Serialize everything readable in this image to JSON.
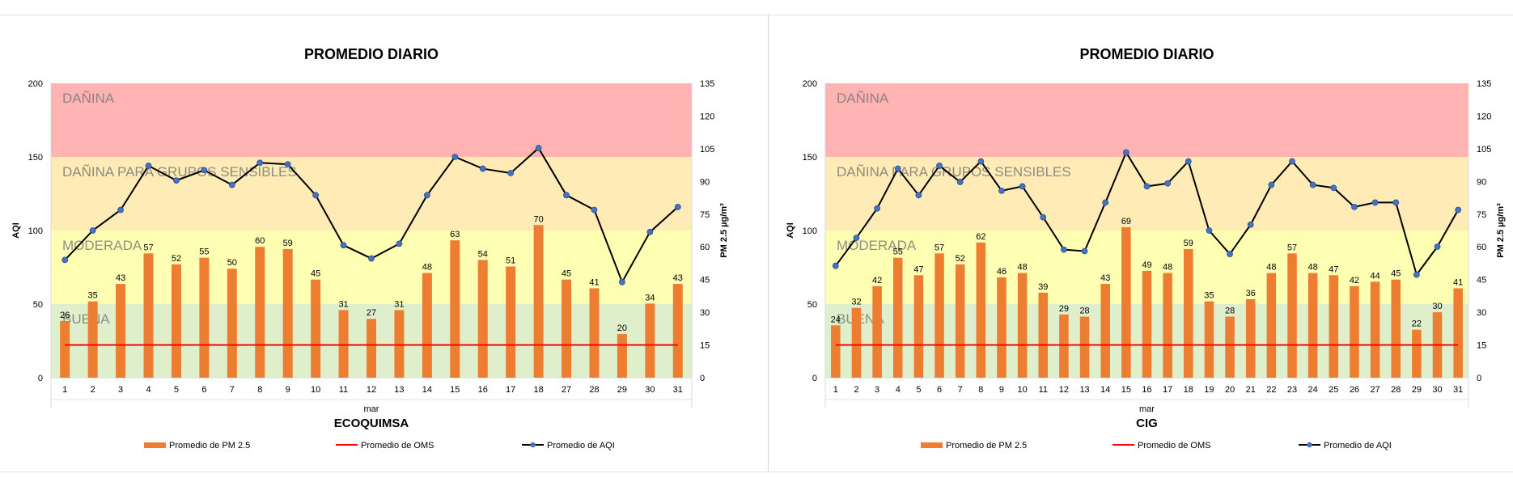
{
  "colors": {
    "bar": "#ED7D31",
    "oms_line": "#FF0000",
    "aqi_line": "#000000",
    "aqi_marker": "#4472C4",
    "band_danina": "#FFB3B3",
    "band_sensibles": "#FFEBB5",
    "band_moderada": "#FFFFB3",
    "band_buena": "#DFEFCB"
  },
  "bands": {
    "danina": "DAÑINA",
    "sensibles": "DAÑINA PARA GRUPOS SENSIBLES",
    "moderada": "MODERADA",
    "buena": "BUENA"
  },
  "chart_data": [
    {
      "type": "bar",
      "title": "PROMEDIO DIARIO",
      "subtitle": "ECOQUIMSA",
      "xlabel": "mar",
      "ylabel": "AQI",
      "y2label": "PM 2.5 µg/m³",
      "ylim": [
        0,
        200
      ],
      "y2lim": [
        0,
        135
      ],
      "yticks": [
        "0",
        "50",
        "100",
        "150",
        "200"
      ],
      "y2ticks": [
        "0",
        "15",
        "30",
        "45",
        "60",
        "75",
        "90",
        "105",
        "120",
        "135"
      ],
      "categories": [
        "1",
        "2",
        "3",
        "4",
        "5",
        "6",
        "7",
        "8",
        "9",
        "10",
        "11",
        "12",
        "13",
        "14",
        "15",
        "16",
        "17",
        "18",
        "27",
        "28",
        "29",
        "30",
        "31"
      ],
      "series": [
        {
          "name": "Promedio de PM 2.5",
          "kind": "bar",
          "axis": "right",
          "values": [
            26,
            35,
            43,
            57,
            52,
            55,
            50,
            60,
            59,
            45,
            31,
            27,
            31,
            48,
            63,
            54,
            51,
            70,
            45,
            41,
            20,
            34,
            43
          ]
        },
        {
          "name": "Promedio de OMS",
          "kind": "line",
          "axis": "right",
          "values": [
            15,
            15,
            15,
            15,
            15,
            15,
            15,
            15,
            15,
            15,
            15,
            15,
            15,
            15,
            15,
            15,
            15,
            15,
            15,
            15,
            15,
            15,
            15
          ]
        },
        {
          "name": "Promedio de AQI",
          "kind": "line",
          "axis": "left",
          "values": [
            80,
            100,
            114,
            144,
            134,
            141,
            131,
            146,
            145,
            124,
            90,
            81,
            91,
            124,
            150,
            142,
            139,
            156,
            124,
            114,
            65,
            99,
            116
          ]
        }
      ],
      "legend": [
        "Promedio de PM 2.5",
        "Promedio de OMS",
        "Promedio de AQI"
      ]
    },
    {
      "type": "bar",
      "title": "PROMEDIO DIARIO",
      "subtitle": "CIG",
      "xlabel": "mar",
      "ylabel": "AQI",
      "y2label": "PM 2.5 µg/m³",
      "ylim": [
        0,
        200
      ],
      "y2lim": [
        0,
        135
      ],
      "yticks": [
        "0",
        "50",
        "100",
        "150",
        "200"
      ],
      "y2ticks": [
        "0",
        "15",
        "30",
        "45",
        "60",
        "75",
        "90",
        "105",
        "120",
        "135"
      ],
      "categories": [
        "1",
        "2",
        "3",
        "4",
        "5",
        "6",
        "7",
        "8",
        "9",
        "10",
        "11",
        "12",
        "13",
        "14",
        "15",
        "16",
        "17",
        "18",
        "19",
        "20",
        "21",
        "22",
        "23",
        "24",
        "25",
        "26",
        "27",
        "28",
        "29",
        "30",
        "31"
      ],
      "series": [
        {
          "name": "Promedio de PM 2.5",
          "kind": "bar",
          "axis": "right",
          "values": [
            24,
            32,
            42,
            55,
            47,
            57,
            52,
            62,
            46,
            48,
            39,
            29,
            28,
            43,
            69,
            49,
            48,
            59,
            35,
            28,
            36,
            48,
            57,
            48,
            47,
            42,
            44,
            45,
            22,
            30,
            41
          ]
        },
        {
          "name": "Promedio de OMS",
          "kind": "line",
          "axis": "right",
          "values": [
            15,
            15,
            15,
            15,
            15,
            15,
            15,
            15,
            15,
            15,
            15,
            15,
            15,
            15,
            15,
            15,
            15,
            15,
            15,
            15,
            15,
            15,
            15,
            15,
            15,
            15,
            15,
            15,
            15,
            15,
            15
          ]
        },
        {
          "name": "Promedio de AQI",
          "kind": "line",
          "axis": "left",
          "values": [
            76,
            95,
            115,
            142,
            124,
            144,
            133,
            147,
            127,
            130,
            109,
            87,
            86,
            119,
            153,
            130,
            132,
            147,
            100,
            84,
            104,
            131,
            147,
            131,
            129,
            116,
            119,
            119,
            70,
            89,
            114
          ]
        }
      ],
      "legend": [
        "Promedio de PM 2.5",
        "Promedio de OMS",
        "Promedio de AQI"
      ]
    }
  ]
}
